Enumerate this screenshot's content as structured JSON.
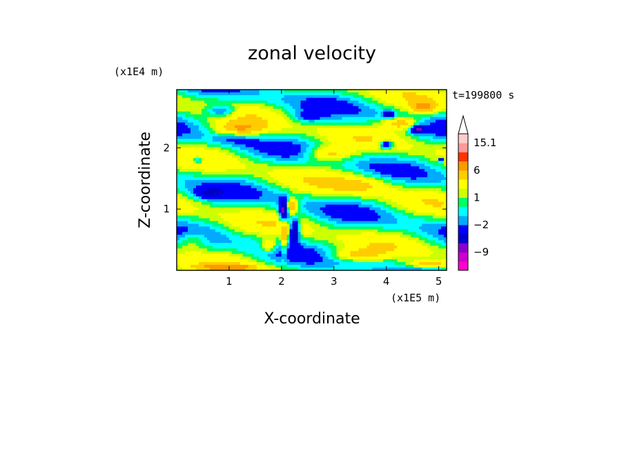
{
  "chart_data": {
    "type": "heatmap",
    "title": "zonal velocity",
    "xlabel": "X-coordinate",
    "ylabel": "Z-coordinate",
    "x_scale_note": "(x1E5 m)",
    "y_scale_note": "(x1E4 m)",
    "time_label": "t=199800 s",
    "xlim": [
      0,
      5.15
    ],
    "ylim": [
      0,
      2.95
    ],
    "x_ticks": [
      1,
      2,
      3,
      4,
      5
    ],
    "y_ticks": [
      1,
      2
    ],
    "x_tick_labels": [
      "1",
      "2",
      "3",
      "4",
      "5"
    ],
    "y_tick_labels": [
      "1",
      "2"
    ],
    "colorbar": {
      "levels": [
        -12,
        -9,
        -6,
        -4,
        -2,
        -1,
        0,
        1,
        2,
        4,
        6,
        9,
        12,
        15.1
      ],
      "colors": [
        "#ff00cc",
        "#cc00cc",
        "#8800cc",
        "#0000cc",
        "#0000ff",
        "#00aaff",
        "#00ffff",
        "#00ff66",
        "#ccff00",
        "#ffff00",
        "#ffcc00",
        "#ff9900",
        "#ff3300",
        "#ff9999",
        "#ffcccc"
      ],
      "tick_labels": [
        "15.1",
        "6",
        "1",
        "−2",
        "−9"
      ],
      "tick_values": [
        15.1,
        6,
        1,
        -2,
        -9
      ]
    },
    "features": [
      {
        "x": 2.05,
        "z": 0.95,
        "u": -9,
        "sx": 0.09,
        "sz": 0.2
      },
      {
        "x": 2.25,
        "z": 0.65,
        "u": -9,
        "sx": 0.09,
        "sz": 0.2
      },
      {
        "x": 2.2,
        "z": 1.05,
        "u": 7,
        "sx": 0.12,
        "sz": 0.12
      },
      {
        "x": 1.75,
        "z": 0.4,
        "u": 5,
        "sx": 0.15,
        "sz": 0.1
      },
      {
        "x": 2.05,
        "z": 0.55,
        "u": 5,
        "sx": 0.05,
        "sz": 0.3
      },
      {
        "x": 0.85,
        "z": 2.6,
        "u": -5,
        "sx": 0.3,
        "sz": 0.1
      },
      {
        "x": 0.4,
        "z": 1.8,
        "u": -5,
        "sx": 0.12,
        "sz": 0.06
      },
      {
        "x": 0.6,
        "z": 1.25,
        "u": -3,
        "sx": 0.3,
        "sz": 0.1
      },
      {
        "x": 1.1,
        "z": 2.15,
        "u": -2,
        "sx": 0.4,
        "sz": 0.1
      },
      {
        "x": 4.0,
        "z": 2.05,
        "u": -7,
        "sx": 0.13,
        "sz": 0.07
      },
      {
        "x": 4.6,
        "z": 2.3,
        "u": -7,
        "sx": 0.13,
        "sz": 0.07
      },
      {
        "x": 4.05,
        "z": 2.55,
        "u": -6,
        "sx": 0.1,
        "sz": 0.06
      },
      {
        "x": 4.3,
        "z": 2.4,
        "u": 6,
        "sx": 0.35,
        "sz": 0.1
      },
      {
        "x": 4.7,
        "z": 2.65,
        "u": 5,
        "sx": 0.25,
        "sz": 0.1
      },
      {
        "x": 5.05,
        "z": 1.8,
        "u": -6,
        "sx": 0.05,
        "sz": 0.04
      },
      {
        "x": 2.9,
        "z": 1.9,
        "u": 5,
        "sx": 0.4,
        "sz": 0.12
      },
      {
        "x": 1.2,
        "z": 2.3,
        "u": 5,
        "sx": 0.5,
        "sz": 0.12
      },
      {
        "x": 3.4,
        "z": 0.25,
        "u": 4,
        "sx": 0.5,
        "sz": 0.1
      },
      {
        "x": 4.8,
        "z": 0.1,
        "u": 5,
        "sx": 0.4,
        "sz": 0.06
      },
      {
        "x": 1.0,
        "z": 0.05,
        "u": 5,
        "sx": 0.6,
        "sz": 0.05
      },
      {
        "x": 2.5,
        "z": 2.5,
        "u": -3,
        "sx": 0.3,
        "sz": 0.1
      },
      {
        "x": 3.5,
        "z": 1.4,
        "u": 3,
        "sx": 0.6,
        "sz": 0.15
      },
      {
        "x": 0.3,
        "z": 0.5,
        "u": 3,
        "sx": 0.3,
        "sz": 0.15
      }
    ]
  }
}
